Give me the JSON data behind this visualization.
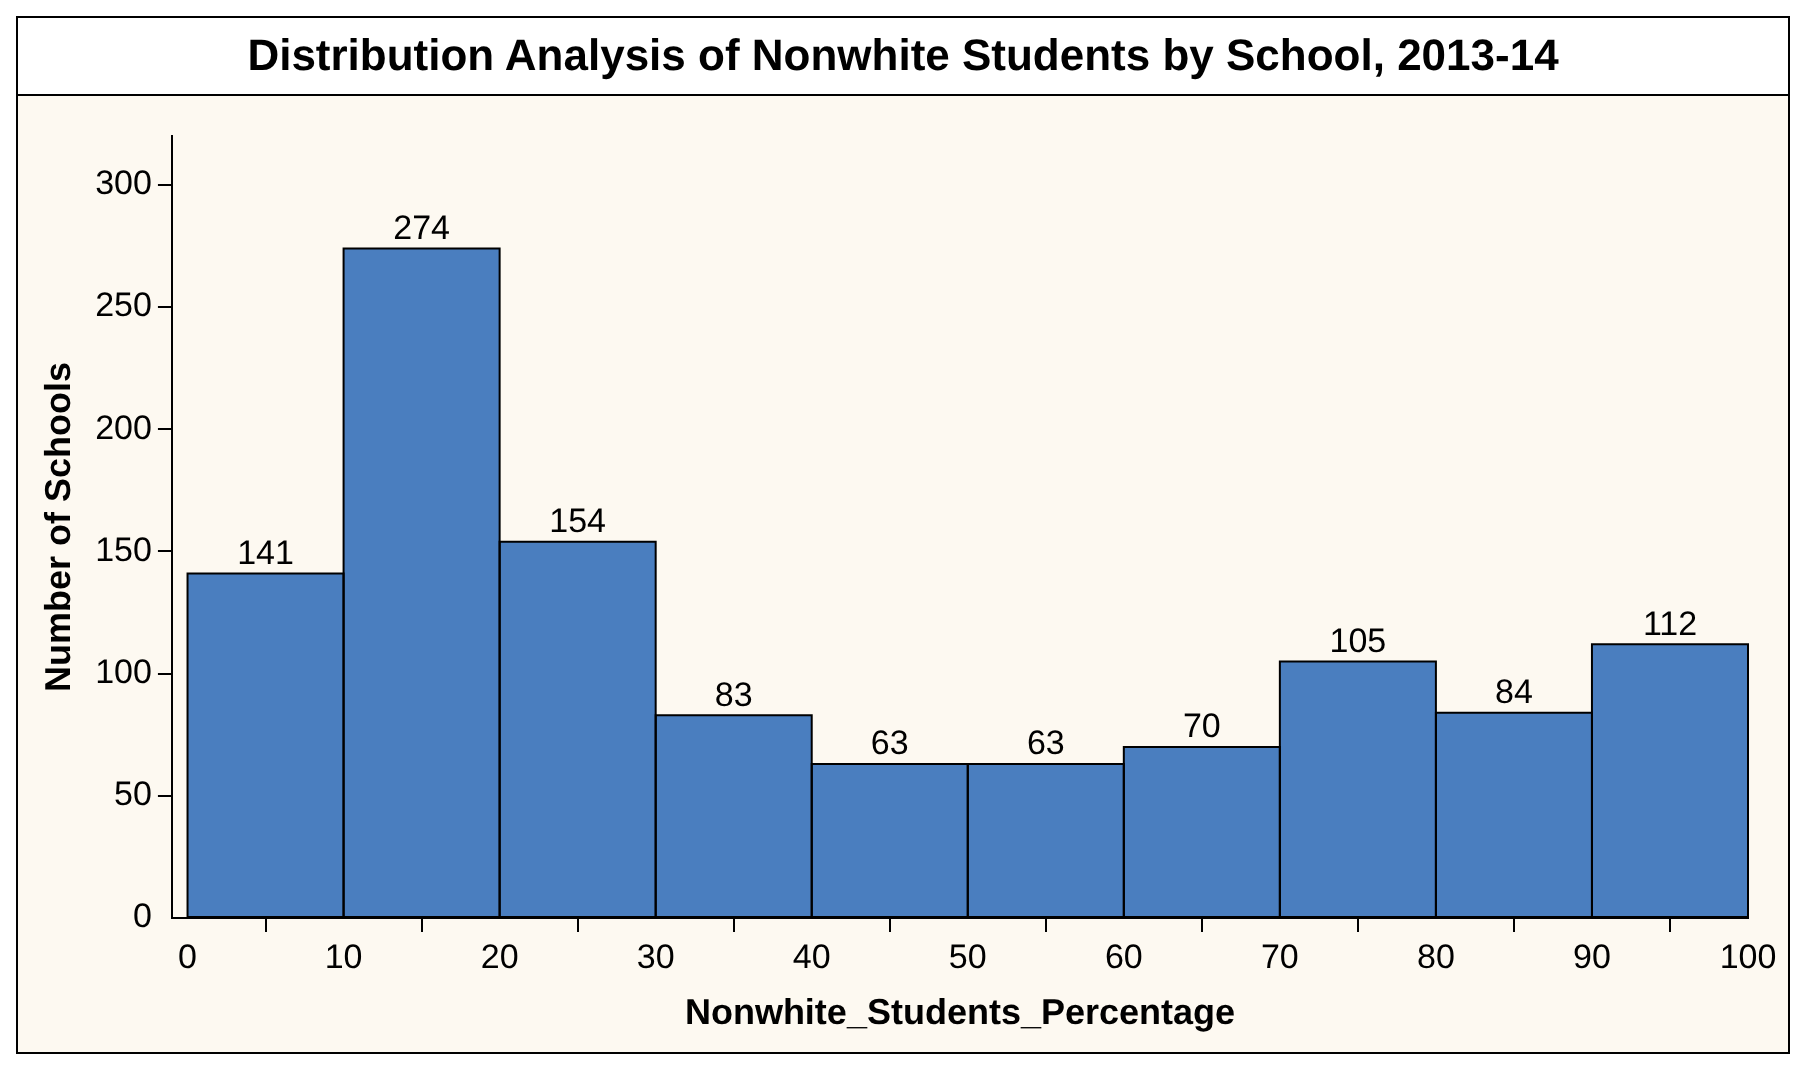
{
  "chart_data": {
    "type": "histogram",
    "title": "Distribution Analysis of Nonwhite Students by School, 2013-14",
    "xlabel": "Nonwhite_Students_Percentage",
    "ylabel": "Number of Schools",
    "bins": [
      0,
      10,
      20,
      30,
      40,
      50,
      60,
      70,
      80,
      90,
      100
    ],
    "values": [
      141,
      274,
      154,
      83,
      63,
      63,
      70,
      105,
      84,
      112
    ],
    "color": "#4a7ebf",
    "xlim": [
      -1,
      100
    ],
    "xticks": [
      0,
      10,
      20,
      30,
      40,
      50,
      60,
      70,
      80,
      90,
      100
    ],
    "ylim": [
      0,
      320
    ],
    "yticks": [
      0,
      50,
      100,
      150,
      200,
      250,
      300
    ],
    "data_labels": true,
    "grid": false,
    "legend": false
  }
}
